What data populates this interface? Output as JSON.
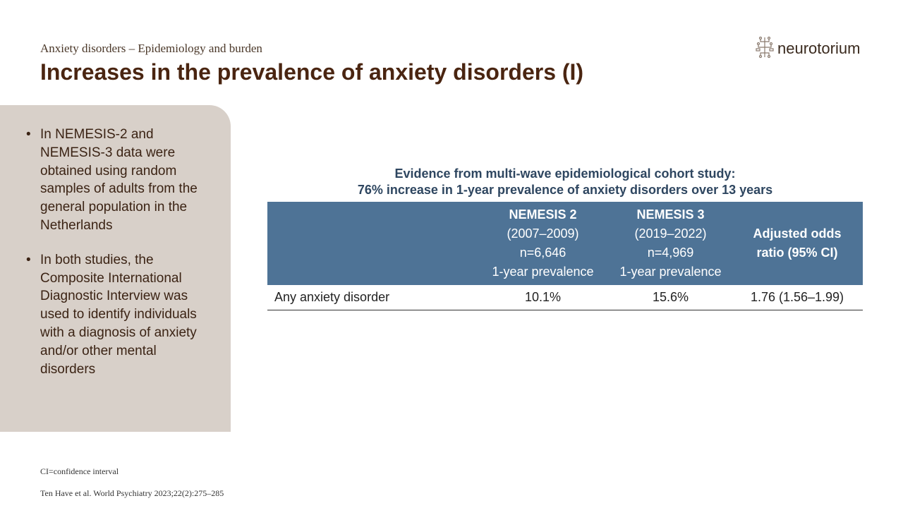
{
  "header": {
    "subtitle": "Anxiety disorders – Epidemiology and burden",
    "title": "Increases in the prevalence of anxiety disorders (I)",
    "logo_text": "neurotorium",
    "logo_icon": "neurotorium-logo-icon"
  },
  "sidebar": {
    "bullets": [
      "In NEMESIS-2 and NEMESIS-3 data were obtained using random samples of adults from the general population in the Netherlands",
      "In both studies, the Composite International Diagnostic Interview was used to identify individuals with a diagnosis of anxiety and/or other mental disorders"
    ]
  },
  "table": {
    "heading_line1": "Evidence from multi-wave epidemiological cohort study:",
    "heading_line2": "76% increase in 1-year prevalence of anxiety disorders over 13 years",
    "columns": [
      {
        "name": "NEMESIS 2",
        "years": "(2007–2009)",
        "n": "n=6,646",
        "measure": "1-year prevalence"
      },
      {
        "name": "NEMESIS 3",
        "years": "(2019–2022)",
        "n": "n=4,969",
        "measure": "1-year prevalence"
      }
    ],
    "or_header_line1": "Adjusted odds",
    "or_header_line2": "ratio (95% CI)",
    "rows": [
      {
        "label": "Any anxiety disorder",
        "nemesis2": "10.1%",
        "nemesis3": "15.6%",
        "odds_ratio": "1.76 (1.56–1.99)"
      }
    ]
  },
  "footnotes": {
    "abbreviation": "CI=confidence interval",
    "reference": "Ten Have et al. World Psychiatry 2023;22(2):275–285"
  },
  "colors": {
    "title": "#4a2511",
    "sidebar_bg": "#d8d0c9",
    "table_header_bg": "#4e7396",
    "table_heading_text": "#2e4660"
  }
}
